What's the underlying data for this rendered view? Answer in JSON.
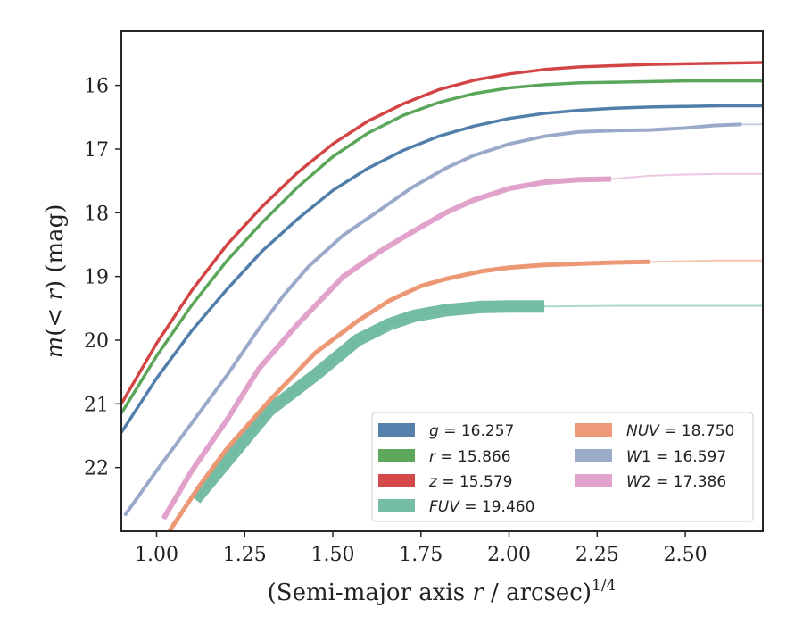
{
  "chart_data": {
    "type": "line",
    "xlabel": "(Semi-major axis r / arcsec)",
    "xlabel_italic": "r",
    "xlabel_superscript": "1/4",
    "ylabel": "m(< r) (mag)",
    "xlim": [
      0.9,
      2.72
    ],
    "ylim": [
      23.0,
      15.15
    ],
    "y_inverted": true,
    "xticks": [
      1.0,
      1.25,
      1.5,
      1.75,
      2.0,
      2.25,
      2.5
    ],
    "xtick_labels": [
      "1.00",
      "1.25",
      "1.50",
      "1.75",
      "2.00",
      "2.25",
      "2.50"
    ],
    "yticks": [
      16,
      17,
      18,
      19,
      20,
      21,
      22
    ],
    "ytick_labels": [
      "16",
      "17",
      "18",
      "19",
      "20",
      "21",
      "22"
    ],
    "grid": false,
    "legend_position": "lower-right",
    "series": [
      {
        "id": "g",
        "legend_italic": "g",
        "legend_rest": " = 16.257",
        "color": "#4c7aa8",
        "band_width": 3.5,
        "obs_end": 2.72,
        "x": [
          0.9,
          1.0,
          1.1,
          1.2,
          1.3,
          1.4,
          1.5,
          1.6,
          1.7,
          1.8,
          1.9,
          2.0,
          2.1,
          2.2,
          2.3,
          2.4,
          2.5,
          2.6,
          2.72
        ],
        "y": [
          21.45,
          20.6,
          19.85,
          19.2,
          18.6,
          18.1,
          17.65,
          17.3,
          17.02,
          16.8,
          16.64,
          16.52,
          16.44,
          16.39,
          16.36,
          16.34,
          16.33,
          16.32,
          16.32
        ]
      },
      {
        "id": "r",
        "legend_italic": "r",
        "legend_rest": " = 15.866",
        "color": "#55a355",
        "band_width": 3.5,
        "obs_end": 2.72,
        "x": [
          0.9,
          1.0,
          1.1,
          1.2,
          1.3,
          1.4,
          1.5,
          1.6,
          1.7,
          1.8,
          1.9,
          2.0,
          2.1,
          2.2,
          2.3,
          2.4,
          2.5,
          2.6,
          2.72
        ],
        "y": [
          21.15,
          20.25,
          19.45,
          18.75,
          18.15,
          17.6,
          17.12,
          16.75,
          16.47,
          16.27,
          16.13,
          16.04,
          15.99,
          15.96,
          15.95,
          15.94,
          15.93,
          15.93,
          15.93
        ]
      },
      {
        "id": "z",
        "legend_italic": "z",
        "legend_rest": " = 15.579",
        "color": "#d23e3e",
        "band_width": 3.5,
        "obs_end": 2.72,
        "x": [
          0.9,
          1.0,
          1.1,
          1.2,
          1.3,
          1.4,
          1.5,
          1.6,
          1.7,
          1.8,
          1.9,
          2.0,
          2.1,
          2.2,
          2.3,
          2.4,
          2.5,
          2.6,
          2.72
        ],
        "y": [
          21.0,
          20.05,
          19.22,
          18.5,
          17.9,
          17.37,
          16.92,
          16.56,
          16.29,
          16.07,
          15.92,
          15.82,
          15.75,
          15.71,
          15.69,
          15.67,
          15.66,
          15.65,
          15.64
        ]
      },
      {
        "id": "fuv",
        "legend_italic": "FUV",
        "legend_rest": " = 19.460",
        "color": "#6db8a0",
        "band_width": 14,
        "obs_end": 2.1,
        "x": [
          1.11,
          1.32,
          1.45,
          1.57,
          1.66,
          1.73,
          1.82,
          1.92,
          2.0,
          2.1,
          2.3,
          2.5,
          2.72
        ],
        "y": [
          22.5,
          21.1,
          20.55,
          20.0,
          19.75,
          19.62,
          19.53,
          19.48,
          19.47,
          19.47,
          19.46,
          19.46,
          19.46
        ]
      },
      {
        "id": "nuv",
        "legend_italic": "NUV",
        "legend_rest": " = 18.750",
        "color": "#eb9570",
        "band_width": 5,
        "obs_end": 2.4,
        "x": [
          1.03,
          1.12,
          1.2,
          1.32,
          1.45,
          1.57,
          1.66,
          1.75,
          1.82,
          1.92,
          2.0,
          2.1,
          2.2,
          2.3,
          2.4,
          2.5,
          2.6,
          2.72
        ],
        "y": [
          23.05,
          22.3,
          21.7,
          20.95,
          20.2,
          19.7,
          19.38,
          19.15,
          19.04,
          18.92,
          18.86,
          18.82,
          18.8,
          18.78,
          18.77,
          18.76,
          18.75,
          18.75
        ]
      },
      {
        "id": "w1",
        "legend_italic": "W",
        "legend_rest": "1 = 16.597",
        "color": "#98a6c8",
        "band_width": 4,
        "obs_end": 2.66,
        "x": [
          0.91,
          1.0,
          1.1,
          1.2,
          1.29,
          1.36,
          1.43,
          1.53,
          1.63,
          1.72,
          1.82,
          1.9,
          2.0,
          2.1,
          2.2,
          2.3,
          2.4,
          2.5,
          2.58,
          2.66,
          2.72
        ],
        "y": [
          22.75,
          22.05,
          21.3,
          20.55,
          19.82,
          19.3,
          18.85,
          18.35,
          17.97,
          17.62,
          17.3,
          17.1,
          16.92,
          16.8,
          16.73,
          16.71,
          16.7,
          16.67,
          16.63,
          16.61,
          16.61
        ]
      },
      {
        "id": "w2",
        "legend_italic": "W",
        "legend_rest": "2 = 17.386",
        "color": "#df9ec8",
        "band_width": 6,
        "obs_end": 2.29,
        "x": [
          1.02,
          1.1,
          1.2,
          1.29,
          1.4,
          1.53,
          1.63,
          1.72,
          1.82,
          1.9,
          2.0,
          2.1,
          2.2,
          2.29,
          2.4,
          2.5,
          2.6,
          2.72
        ],
        "y": [
          22.8,
          22.05,
          21.25,
          20.45,
          19.75,
          19.0,
          18.62,
          18.32,
          18.0,
          17.8,
          17.62,
          17.52,
          17.48,
          17.47,
          17.42,
          17.4,
          17.39,
          17.39
        ]
      }
    ]
  }
}
